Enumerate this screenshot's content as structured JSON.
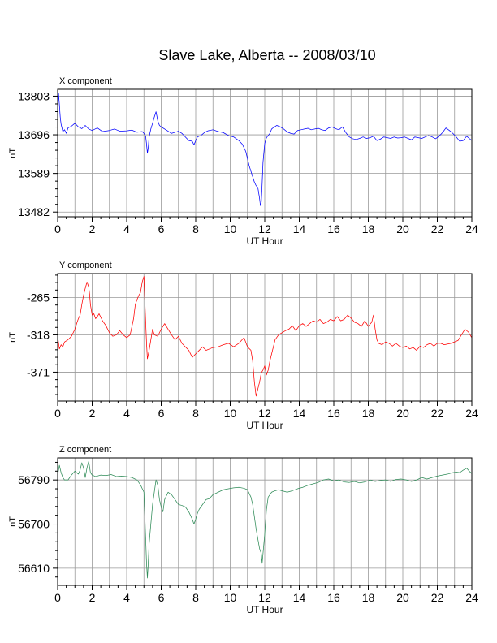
{
  "title": "Slave Lake, Alberta -- 2008/03/10",
  "chart_data": [
    {
      "type": "line",
      "title": "X component",
      "xlabel": "UT Hour",
      "ylabel": "nT",
      "xlim": [
        0,
        24
      ],
      "ylim": [
        13469,
        13822
      ],
      "xticks": [
        0,
        2,
        4,
        6,
        8,
        10,
        12,
        14,
        16,
        18,
        20,
        22,
        24
      ],
      "yticks": [
        13482,
        13589,
        13696,
        13803
      ],
      "grid": true,
      "color": "#0000ff",
      "series": [
        {
          "x": [
            0,
            0.05,
            0.1,
            0.15,
            0.2,
            0.3,
            0.4,
            0.5,
            0.6,
            0.8,
            1.0,
            1.2,
            1.4,
            1.6,
            1.8,
            2.0,
            2.3,
            2.6,
            3.0,
            3.3,
            3.6,
            4.0,
            4.3,
            4.6,
            4.9,
            5.0,
            5.1,
            5.15,
            5.2,
            5.25,
            5.3,
            5.4,
            5.5,
            5.6,
            5.7,
            5.8,
            5.9,
            6.0,
            6.2,
            6.4,
            6.6,
            6.8,
            7.0,
            7.2,
            7.4,
            7.6,
            7.8,
            7.9,
            8.0,
            8.1,
            8.3,
            8.5,
            8.7,
            9.0,
            9.3,
            9.6,
            9.9,
            10.2,
            10.5,
            10.7,
            10.9,
            11.0,
            11.1,
            11.2,
            11.3,
            11.4,
            11.5,
            11.6,
            11.7,
            11.75,
            11.8,
            11.85,
            11.9,
            12.0,
            12.1,
            12.2,
            12.3,
            12.4,
            12.5,
            12.7,
            12.9,
            13.1,
            13.3,
            13.5,
            13.7,
            13.9,
            14.1,
            14.3,
            14.5,
            14.7,
            14.9,
            15.1,
            15.3,
            15.5,
            15.7,
            15.9,
            16.1,
            16.3,
            16.5,
            16.7,
            16.9,
            17.1,
            17.3,
            17.5,
            17.7,
            17.9,
            18.1,
            18.3,
            18.5,
            18.7,
            18.9,
            19.1,
            19.3,
            19.5,
            19.7,
            19.9,
            20.1,
            20.3,
            20.5,
            20.7,
            20.9,
            21.1,
            21.3,
            21.5,
            21.7,
            21.9,
            22.1,
            22.3,
            22.5,
            22.7,
            22.9,
            23.1,
            23.3,
            23.5,
            23.7,
            23.9,
            24.0
          ],
          "values": [
            13740,
            13812,
            13780,
            13745,
            13725,
            13705,
            13710,
            13700,
            13715,
            13720,
            13728,
            13718,
            13713,
            13722,
            13712,
            13708,
            13715,
            13705,
            13708,
            13712,
            13706,
            13707,
            13709,
            13703,
            13705,
            13700,
            13692,
            13670,
            13645,
            13660,
            13690,
            13712,
            13728,
            13745,
            13760,
            13735,
            13722,
            13718,
            13712,
            13706,
            13700,
            13703,
            13706,
            13700,
            13690,
            13680,
            13678,
            13668,
            13680,
            13690,
            13694,
            13702,
            13707,
            13710,
            13705,
            13702,
            13694,
            13690,
            13680,
            13670,
            13650,
            13630,
            13610,
            13595,
            13580,
            13565,
            13555,
            13550,
            13520,
            13500,
            13510,
            13560,
            13620,
            13672,
            13688,
            13694,
            13700,
            13712,
            13716,
            13722,
            13718,
            13712,
            13704,
            13700,
            13698,
            13708,
            13710,
            13712,
            13714,
            13710,
            13712,
            13714,
            13710,
            13708,
            13715,
            13718,
            13713,
            13710,
            13718,
            13702,
            13690,
            13685,
            13683,
            13686,
            13690,
            13686,
            13688,
            13692,
            13680,
            13684,
            13690,
            13688,
            13686,
            13690,
            13687,
            13688,
            13690,
            13686,
            13682,
            13690,
            13688,
            13686,
            13690,
            13694,
            13690,
            13685,
            13692,
            13702,
            13715,
            13708,
            13700,
            13690,
            13678,
            13680,
            13692,
            13684,
            13680
          ]
        }
      ]
    },
    {
      "type": "line",
      "title": "Y component",
      "xlabel": "UT Hour",
      "ylabel": "nT",
      "xlim": [
        0,
        24
      ],
      "ylim": [
        -412,
        -231
      ],
      "xticks": [
        0,
        2,
        4,
        6,
        8,
        10,
        12,
        14,
        16,
        18,
        20,
        22,
        24
      ],
      "yticks": [
        -265,
        -318,
        -371
      ],
      "grid": true,
      "color": "#ff0000",
      "series": [
        {
          "x": [
            0,
            0.1,
            0.2,
            0.3,
            0.4,
            0.6,
            0.8,
            1.0,
            1.1,
            1.2,
            1.3,
            1.4,
            1.5,
            1.6,
            1.7,
            1.8,
            1.85,
            1.9,
            2.0,
            2.1,
            2.2,
            2.3,
            2.4,
            2.6,
            2.8,
            3.0,
            3.2,
            3.4,
            3.6,
            3.8,
            4.0,
            4.2,
            4.4,
            4.5,
            4.6,
            4.7,
            4.8,
            4.9,
            5.0,
            5.1,
            5.15,
            5.2,
            5.3,
            5.4,
            5.5,
            5.6,
            5.8,
            6.0,
            6.2,
            6.4,
            6.6,
            6.8,
            7.0,
            7.2,
            7.4,
            7.6,
            7.8,
            8.0,
            8.2,
            8.4,
            8.6,
            8.8,
            9.0,
            9.3,
            9.6,
            9.9,
            10.2,
            10.5,
            10.8,
            11.0,
            11.2,
            11.3,
            11.4,
            11.5,
            11.6,
            11.7,
            11.8,
            11.9,
            12.0,
            12.1,
            12.2,
            12.3,
            12.4,
            12.5,
            12.6,
            12.8,
            13.0,
            13.2,
            13.4,
            13.6,
            13.8,
            14.0,
            14.2,
            14.4,
            14.6,
            14.8,
            15.0,
            15.2,
            15.4,
            15.6,
            15.8,
            16.0,
            16.2,
            16.4,
            16.6,
            16.8,
            17.0,
            17.2,
            17.4,
            17.6,
            17.8,
            18.0,
            18.2,
            18.3,
            18.4,
            18.5,
            18.6,
            18.8,
            19.0,
            19.2,
            19.4,
            19.6,
            19.8,
            20.0,
            20.2,
            20.4,
            20.6,
            20.8,
            21.0,
            21.2,
            21.4,
            21.6,
            21.8,
            22.0,
            22.2,
            22.4,
            22.6,
            22.8,
            23.0,
            23.2,
            23.4,
            23.6,
            23.8,
            24.0
          ],
          "values": [
            -320,
            -338,
            -332,
            -335,
            -328,
            -325,
            -320,
            -310,
            -302,
            -295,
            -290,
            -275,
            -262,
            -252,
            -243,
            -250,
            -260,
            -275,
            -290,
            -288,
            -295,
            -292,
            -288,
            -298,
            -305,
            -315,
            -320,
            -318,
            -312,
            -318,
            -322,
            -318,
            -295,
            -275,
            -268,
            -262,
            -258,
            -243,
            -235,
            -300,
            -330,
            -352,
            -340,
            -325,
            -310,
            -318,
            -320,
            -310,
            -302,
            -310,
            -318,
            -325,
            -320,
            -330,
            -335,
            -340,
            -350,
            -345,
            -340,
            -335,
            -340,
            -338,
            -336,
            -335,
            -332,
            -330,
            -335,
            -330,
            -322,
            -335,
            -340,
            -355,
            -385,
            -405,
            -395,
            -385,
            -372,
            -368,
            -362,
            -375,
            -368,
            -355,
            -345,
            -335,
            -325,
            -318,
            -315,
            -312,
            -310,
            -305,
            -312,
            -305,
            -302,
            -306,
            -302,
            -298,
            -300,
            -296,
            -302,
            -300,
            -296,
            -298,
            -292,
            -298,
            -296,
            -290,
            -294,
            -300,
            -302,
            -306,
            -298,
            -306,
            -300,
            -290,
            -310,
            -325,
            -330,
            -332,
            -328,
            -330,
            -334,
            -330,
            -334,
            -336,
            -334,
            -338,
            -336,
            -340,
            -334,
            -336,
            -332,
            -330,
            -334,
            -330,
            -330,
            -332,
            -331,
            -330,
            -328,
            -326,
            -318,
            -310,
            -314,
            -322
          ]
        }
      ]
    },
    {
      "type": "line",
      "title": "Z component",
      "xlabel": "UT Hour",
      "ylabel": "nT",
      "xlim": [
        0,
        24
      ],
      "ylim": [
        56575,
        56835
      ],
      "xticks": [
        0,
        2,
        4,
        6,
        8,
        10,
        12,
        14,
        16,
        18,
        20,
        22,
        24
      ],
      "yticks": [
        56790,
        56700,
        56610
      ],
      "grid": true,
      "color": "#2e8b57",
      "series": [
        {
          "x": [
            0,
            0.1,
            0.2,
            0.3,
            0.4,
            0.6,
            0.8,
            1.0,
            1.2,
            1.3,
            1.4,
            1.5,
            1.6,
            1.7,
            1.8,
            1.9,
            2.0,
            2.2,
            2.5,
            2.8,
            3.1,
            3.4,
            3.7,
            4.0,
            4.3,
            4.6,
            4.8,
            5.0,
            5.05,
            5.1,
            5.15,
            5.2,
            5.25,
            5.3,
            5.4,
            5.5,
            5.6,
            5.7,
            5.8,
            5.9,
            6.0,
            6.1,
            6.2,
            6.4,
            6.6,
            6.8,
            7.0,
            7.2,
            7.4,
            7.6,
            7.8,
            7.9,
            8.0,
            8.1,
            8.2,
            8.4,
            8.6,
            8.8,
            9.0,
            9.3,
            9.6,
            9.9,
            10.2,
            10.5,
            10.8,
            11.0,
            11.2,
            11.3,
            11.4,
            11.5,
            11.6,
            11.7,
            11.8,
            11.85,
            11.9,
            12.0,
            12.1,
            12.2,
            12.4,
            12.6,
            12.8,
            13.0,
            13.3,
            13.6,
            13.9,
            14.2,
            14.5,
            14.8,
            15.1,
            15.4,
            15.7,
            16.0,
            16.3,
            16.6,
            16.9,
            17.2,
            17.5,
            17.8,
            18.1,
            18.4,
            18.7,
            19.0,
            19.3,
            19.6,
            19.9,
            20.2,
            20.5,
            20.8,
            21.1,
            21.4,
            21.7,
            22.0,
            22.3,
            22.6,
            22.9,
            23.1,
            23.3,
            23.5,
            23.7,
            23.85,
            24.0
          ],
          "values": [
            56800,
            56820,
            56805,
            56795,
            56790,
            56790,
            56800,
            56808,
            56802,
            56810,
            56825,
            56815,
            56795,
            56815,
            56828,
            56805,
            56800,
            56797,
            56800,
            56799,
            56801,
            56797,
            56798,
            56797,
            56795,
            56790,
            56780,
            56765,
            56720,
            56670,
            56620,
            56590,
            56620,
            56660,
            56700,
            56740,
            56765,
            56790,
            56780,
            56750,
            56735,
            56725,
            56750,
            56765,
            56760,
            56750,
            56740,
            56738,
            56735,
            56725,
            56710,
            56700,
            56710,
            56722,
            56730,
            56740,
            56750,
            56752,
            56760,
            56765,
            56770,
            56772,
            56774,
            56775,
            56773,
            56770,
            56755,
            56740,
            56715,
            56690,
            56670,
            56650,
            56640,
            56620,
            56640,
            56680,
            56730,
            56755,
            56765,
            56768,
            56770,
            56768,
            56765,
            56768,
            56772,
            56775,
            56779,
            56782,
            56785,
            56790,
            56792,
            56788,
            56790,
            56786,
            56785,
            56787,
            56784,
            56786,
            56790,
            56787,
            56789,
            56790,
            56787,
            56791,
            56792,
            56790,
            56787,
            56790,
            56795,
            56792,
            56795,
            56798,
            56800,
            56802,
            56805,
            56806,
            56805,
            56810,
            56814,
            56808,
            56803
          ]
        }
      ]
    }
  ]
}
